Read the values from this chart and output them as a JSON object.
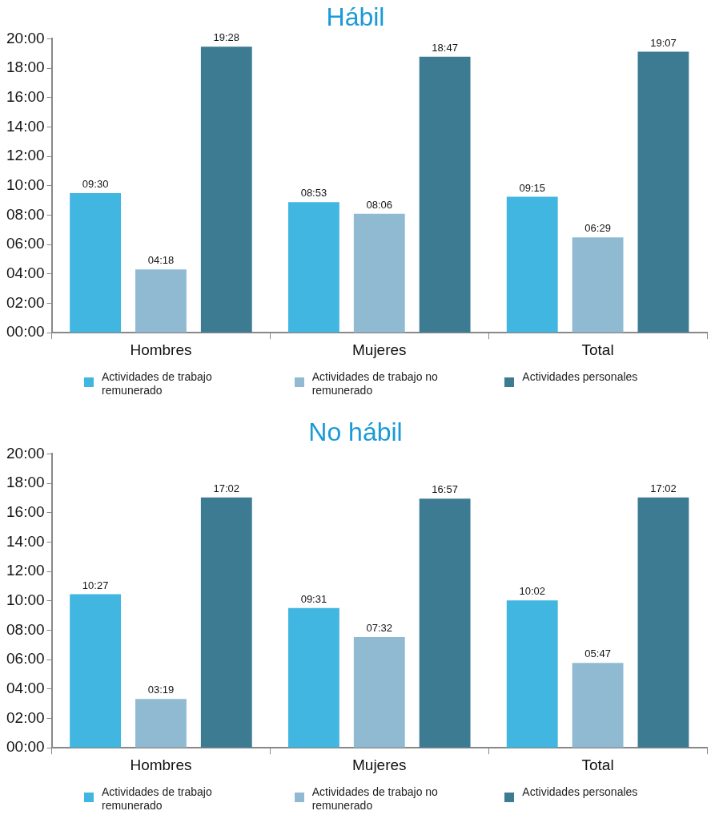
{
  "chart_data": [
    {
      "type": "bar",
      "title": "Hábil",
      "categories": [
        "Hombres",
        "Mujeres",
        "Total"
      ],
      "series": [
        {
          "name": "Actividades de trabajo remunerado",
          "color": "#41b6e0",
          "values": [
            9.5,
            8.8833,
            9.25
          ],
          "value_labels": [
            "09:30",
            "08:53",
            "09:15"
          ]
        },
        {
          "name": "Actividades de trabajo no remunerado",
          "color": "#90bad2",
          "values": [
            4.3,
            8.1,
            6.4833
          ],
          "value_labels": [
            "04:18",
            "08:06",
            "06:29"
          ]
        },
        {
          "name": "Actividades personales",
          "color": "#3d7b93",
          "values": [
            19.4667,
            18.7833,
            19.1167
          ],
          "value_labels": [
            "19:28",
            "18:47",
            "19:07"
          ]
        }
      ],
      "ylim": [
        0,
        20
      ],
      "yticks": [
        {
          "value": 0,
          "label": "00:00"
        },
        {
          "value": 2,
          "label": "02:00"
        },
        {
          "value": 4,
          "label": "04:00"
        },
        {
          "value": 6,
          "label": "06:00"
        },
        {
          "value": 8,
          "label": "08:00"
        },
        {
          "value": 10,
          "label": "10:00"
        },
        {
          "value": 12,
          "label": "12:00"
        },
        {
          "value": 14,
          "label": "14:00"
        },
        {
          "value": 16,
          "label": "16:00"
        },
        {
          "value": 18,
          "label": "18:00"
        },
        {
          "value": 20,
          "label": "20:00"
        }
      ],
      "grid": false,
      "legend": "bottom"
    },
    {
      "type": "bar",
      "title": "No hábil",
      "categories": [
        "Hombres",
        "Mujeres",
        "Total"
      ],
      "series": [
        {
          "name": "Actividades de trabajo remunerado",
          "color": "#41b6e0",
          "values": [
            10.45,
            9.5167,
            10.0333
          ],
          "value_labels": [
            "10:27",
            "09:31",
            "10:02"
          ]
        },
        {
          "name": "Actividades de trabajo no remunerado",
          "color": "#90bad2",
          "values": [
            3.3167,
            7.5333,
            5.7833
          ],
          "value_labels": [
            "03:19",
            "07:32",
            "05:47"
          ]
        },
        {
          "name": "Actividades personales",
          "color": "#3d7b93",
          "values": [
            17.0333,
            16.95,
            17.0333
          ],
          "value_labels": [
            "17:02",
            "16:57",
            "17:02"
          ]
        }
      ],
      "ylim": [
        0,
        20
      ],
      "yticks": [
        {
          "value": 0,
          "label": "00:00"
        },
        {
          "value": 2,
          "label": "02:00"
        },
        {
          "value": 4,
          "label": "04:00"
        },
        {
          "value": 6,
          "label": "06:00"
        },
        {
          "value": 8,
          "label": "08:00"
        },
        {
          "value": 10,
          "label": "10:00"
        },
        {
          "value": 12,
          "label": "12:00"
        },
        {
          "value": 14,
          "label": "14:00"
        },
        {
          "value": 16,
          "label": "16:00"
        },
        {
          "value": 18,
          "label": "18:00"
        },
        {
          "value": 20,
          "label": "20:00"
        }
      ],
      "grid": false,
      "legend": "bottom"
    }
  ]
}
